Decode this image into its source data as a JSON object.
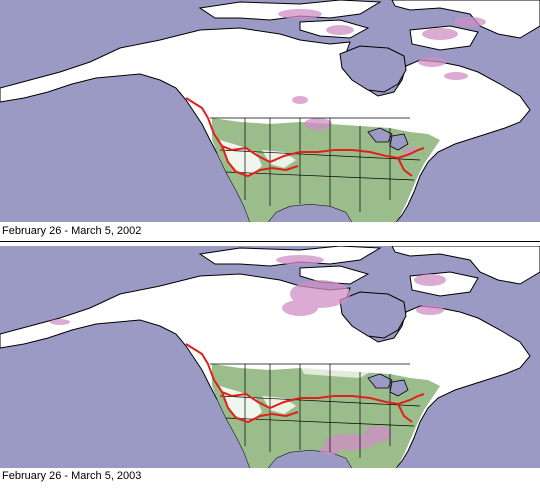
{
  "panels": [
    {
      "caption": "February 26 - March 5, 2002"
    },
    {
      "caption": "February 26 - March 5, 2003"
    }
  ],
  "colors": {
    "ocean": "#9a9ac4",
    "snow": "#ffffff",
    "vegetation": "#9bbd8b",
    "anomaly": "#cf8fc6",
    "snowline": "#e0201a",
    "border": "#000000"
  }
}
